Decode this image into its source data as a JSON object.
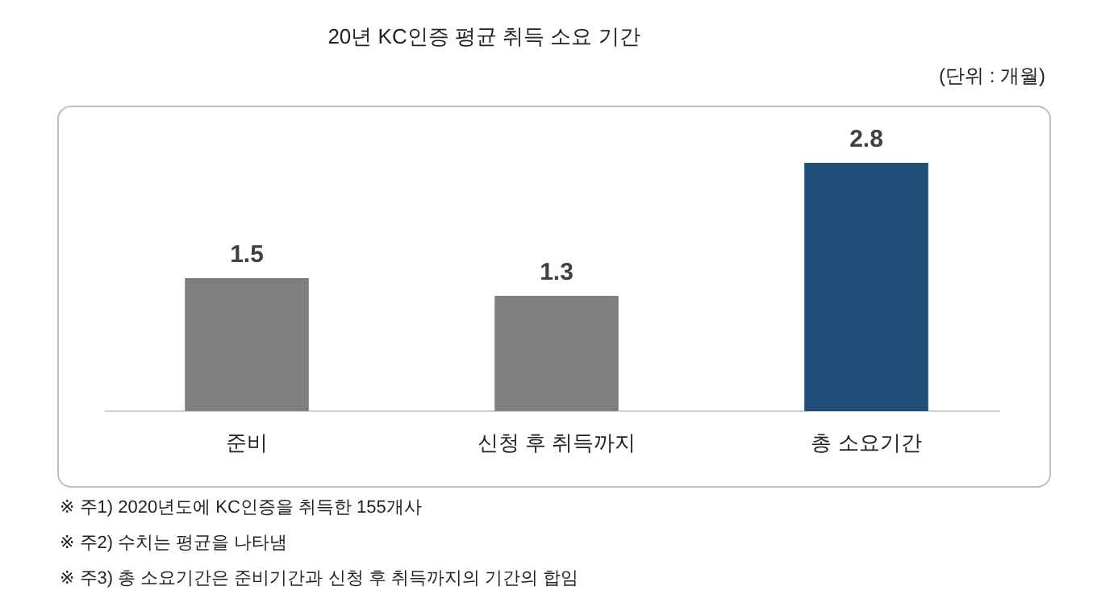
{
  "chart_data": {
    "type": "bar",
    "title": "20년 KC인증 평균 취득 소요 기간",
    "categories": [
      "준비",
      "신청 후 취득까지",
      "총 소요기간"
    ],
    "values": [
      1.5,
      1.3,
      2.8
    ],
    "colors": [
      "#7f7f7f",
      "#7f7f7f",
      "#1f4e79"
    ],
    "data_labels": true,
    "annotations": [
      "(단위 : 개월)",
      "※ 주1) 2020년도에 KC인증을 취득한 155개사",
      "※ 주2) 수치는 평균을 나타냄",
      "※ 주3) 총 소요기간은 준비기간과 신청 후 취득까지의 기간의 합임"
    ]
  }
}
